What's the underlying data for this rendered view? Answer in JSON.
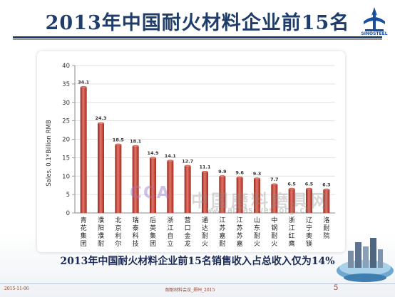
{
  "slide": {
    "title": "2013年中国耐火材料企业前15名",
    "logo_text": "SINOSTEEL",
    "subtitle": "2013年中国耐火材料企业前15名销售收入占总收入仅为14%",
    "footer_date": "2015-11-06",
    "footer_mid": "耐耐材料会议_郑州_2015",
    "page_number": "5",
    "watermark_brand": "CCA",
    "watermark_cn": "中国磨料磨具网",
    "watermark_url": "www.abrasives.org.cn"
  },
  "colors": {
    "title": "#1f3d6b",
    "bar": "#c0392b",
    "bar_dark": "#8e2418",
    "bar_light": "#e5756a",
    "grid": "#d8d8d8"
  },
  "chart_data": {
    "type": "bar",
    "categories": [
      "青花集团",
      "濮阳濮耐",
      "北京利尔",
      "瑞泰科技",
      "后英集团",
      "浙江自立",
      "营口金龙",
      "通达耐火",
      "江苏嘉耐",
      "江苏苏嘉",
      "山东耐火",
      "中钢耐火",
      "浙江红鹰",
      "辽宁奥镁",
      "洛耐院"
    ],
    "values": [
      34.1,
      24.3,
      18.5,
      18.1,
      14.9,
      14.1,
      12.7,
      11.1,
      9.9,
      9.6,
      9.3,
      7.7,
      6.5,
      6.5,
      6.3
    ],
    "data_labels": [
      "34.1",
      "24.3",
      "18.5",
      "18.1",
      "14.9",
      "14.1",
      "12.7",
      "11.1",
      "9.9",
      "9.6",
      "9.3",
      "7.7",
      "6.5",
      "6.5",
      "6.3"
    ],
    "ylabel": "Sales, 0.1*Billion RMB",
    "ylim": [
      0,
      40
    ],
    "yticks": [
      0,
      5,
      10,
      15,
      20,
      25,
      30,
      35,
      40
    ],
    "grid": true
  }
}
